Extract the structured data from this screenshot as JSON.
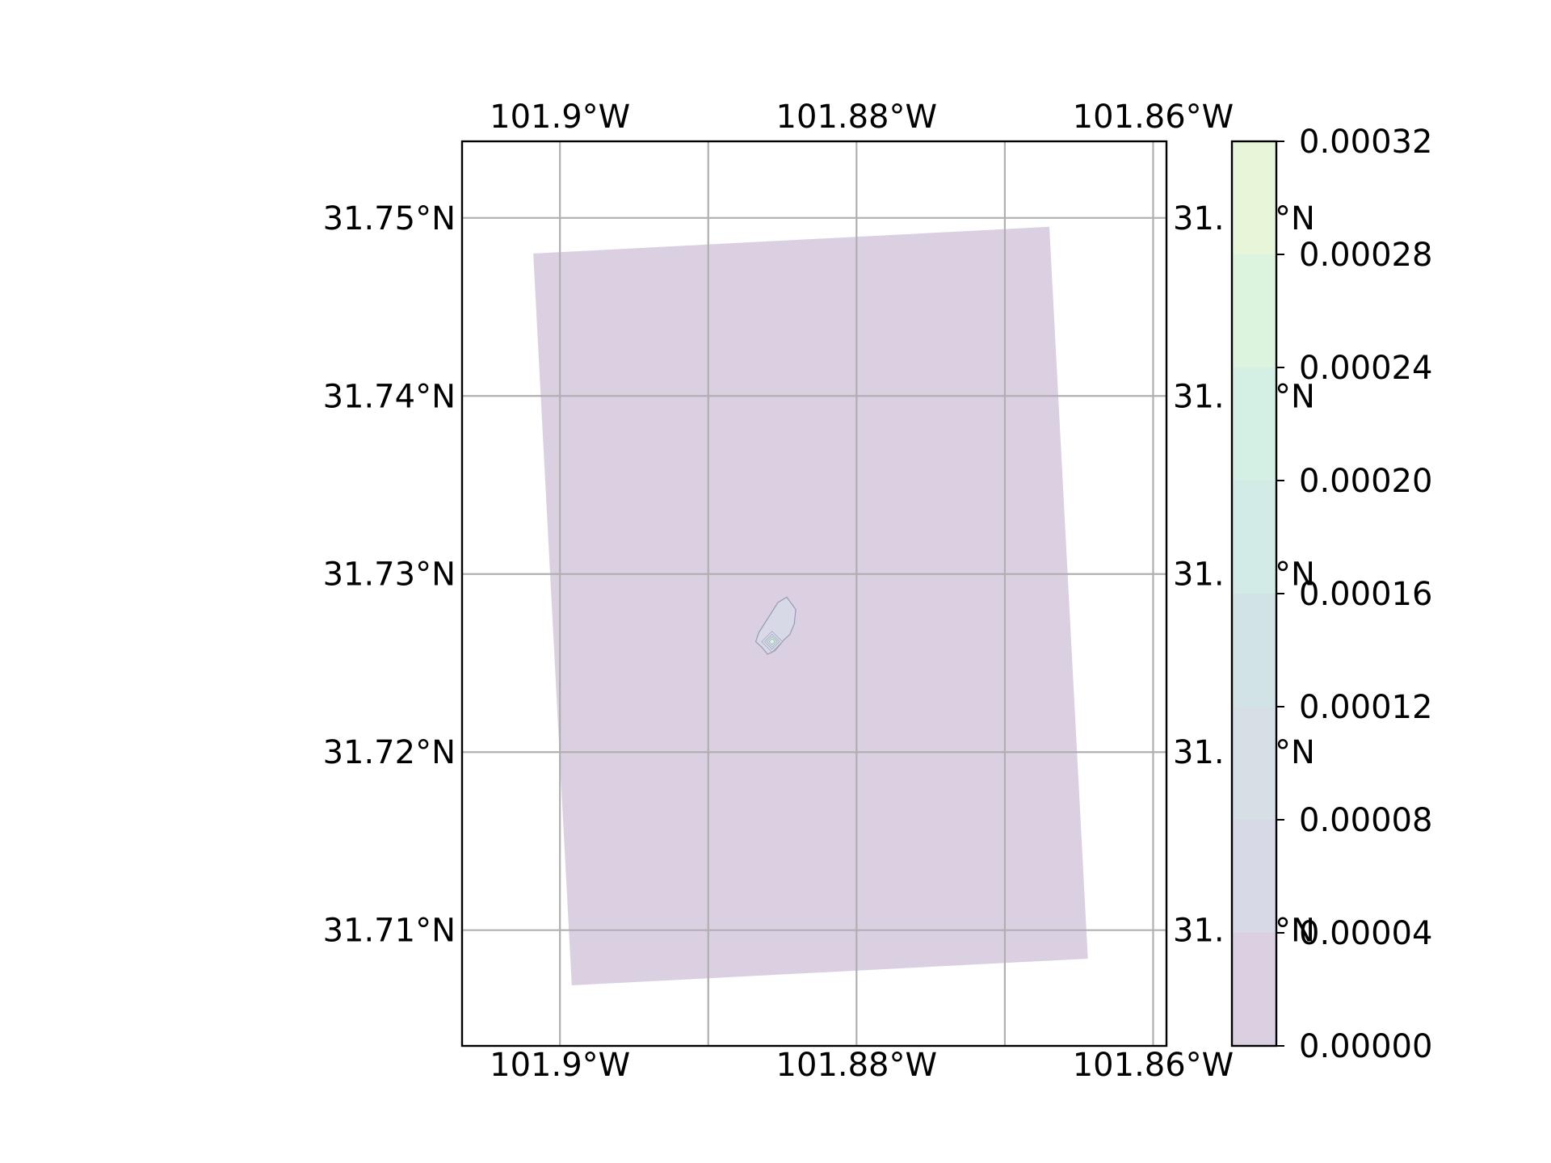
{
  "chart_data": {
    "type": "heatmap",
    "projection": "PlateCarree",
    "title": "",
    "x": {
      "range_deg_west": [
        101.9066,
        101.8591
      ],
      "gridlines": [
        101.9,
        101.89,
        101.88,
        101.87,
        101.86
      ],
      "ticks": [
        101.9,
        101.88,
        101.86
      ],
      "tick_labels": [
        "101.9°W",
        "101.88°W",
        "101.86°W"
      ]
    },
    "y": {
      "range_deg_north": [
        31.7035,
        31.7543
      ],
      "gridlines": [
        31.75,
        31.74,
        31.73,
        31.72,
        31.71
      ],
      "tick_labels_left": [
        "31.75°N",
        "31.74°N",
        "31.73°N",
        "31.72°N",
        "31.71°N"
      ],
      "tick_labels_right_visible": [
        "31.",
        "°N",
        "31.",
        "°N",
        "31.",
        "°N",
        "31.",
        "°N",
        "31.",
        "°N"
      ]
    },
    "grid": true,
    "domain_corners": [
      {
        "lon": -101.9018,
        "lat": 31.748
      },
      {
        "lon": -101.867,
        "lat": 31.7495
      },
      {
        "lon": -101.8644,
        "lat": 31.7084
      },
      {
        "lon": -101.8992,
        "lat": 31.7069
      }
    ],
    "domain_value": 2e-05,
    "plume": {
      "outline": [
        [
          -101.8866,
          31.7267
        ],
        [
          -101.8853,
          31.7284
        ],
        [
          -101.8847,
          31.7287
        ],
        [
          -101.8841,
          31.728
        ],
        [
          -101.8842,
          31.7272
        ],
        [
          -101.8845,
          31.7266
        ],
        [
          -101.8849,
          31.7263
        ],
        [
          -101.8855,
          31.7257
        ],
        [
          -101.886,
          31.7255
        ],
        [
          -101.8864,
          31.7259
        ],
        [
          -101.8868,
          31.7262
        ]
      ],
      "peak": {
        "lon": -101.8857,
        "lat": 31.7262,
        "value": 0.0003
      },
      "inner_rings": [
        {
          "radius_deg": 0.0007,
          "value": 6e-05
        },
        {
          "radius_deg": 0.0005,
          "value": 0.00014
        },
        {
          "radius_deg": 0.00035,
          "value": 0.00018
        },
        {
          "radius_deg": 0.0002,
          "value": 0.00022
        },
        {
          "radius_deg": 0.0001,
          "value": 0.00026
        }
      ]
    },
    "colorbar": {
      "levels": [
        0.0,
        4e-05,
        8e-05,
        0.00012,
        0.00016,
        0.0002,
        0.00024,
        0.00028,
        0.00032
      ],
      "tick_labels": [
        "0.00000",
        "0.00004",
        "0.00008",
        "0.00012",
        "0.00016",
        "0.00020",
        "0.00024",
        "0.00028",
        "0.00032"
      ],
      "colors": [
        "#dbd0e2",
        "#d8d9e6",
        "#d6dee6",
        "#d2e3e6",
        "#d2ebe6",
        "#d4efe4",
        "#dcf4de",
        "#e7f5d9",
        "#f5f8d0"
      ]
    },
    "colors": {
      "grid": "#b0b0b0",
      "frame": "#000000",
      "plume_edge": "#9999b8"
    }
  }
}
